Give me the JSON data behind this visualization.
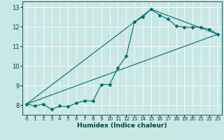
{
  "xlabel": "Humidex (Indice chaleur)",
  "bg_color": "#c8e8e5",
  "grid_color": "#ffffff",
  "line_color": "#006b6b",
  "xlim": [
    -0.5,
    23.5
  ],
  "ylim": [
    7.5,
    13.3
  ],
  "xticks": [
    0,
    1,
    2,
    3,
    4,
    5,
    6,
    7,
    8,
    9,
    10,
    11,
    12,
    13,
    14,
    15,
    16,
    17,
    18,
    19,
    20,
    21,
    22,
    23
  ],
  "yticks": [
    8,
    9,
    10,
    11,
    12,
    13
  ],
  "line1_x": [
    0,
    1,
    2,
    3,
    4,
    5,
    6,
    7,
    8,
    9,
    10,
    11,
    12,
    13,
    14,
    15,
    16,
    17,
    18,
    19,
    20,
    21,
    22,
    23
  ],
  "line1_y": [
    8.05,
    7.95,
    8.05,
    7.78,
    7.95,
    7.92,
    8.1,
    8.22,
    8.2,
    9.05,
    9.05,
    9.9,
    10.5,
    12.25,
    12.5,
    12.9,
    12.6,
    12.4,
    12.05,
    11.98,
    11.98,
    11.98,
    11.88,
    11.62
  ],
  "line2_x": [
    0,
    23
  ],
  "line2_y": [
    8.05,
    11.62
  ],
  "line3_x": [
    0,
    15,
    23
  ],
  "line3_y": [
    8.05,
    12.9,
    11.62
  ]
}
